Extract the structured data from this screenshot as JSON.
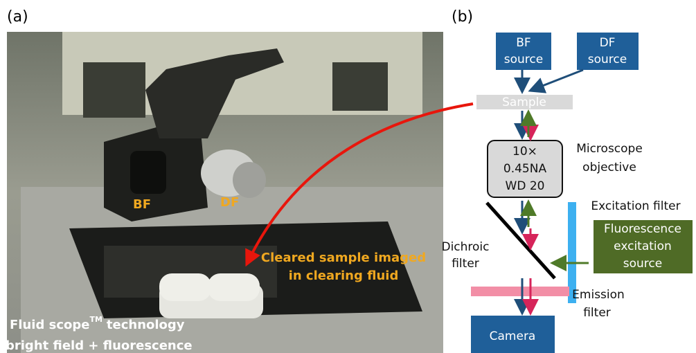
{
  "panel_a": {
    "label": "(a)",
    "photo_labels": {
      "bf": "BF",
      "df": "DF"
    },
    "annotation": [
      "Cleared sample imaged",
      "in clearing fluid"
    ],
    "caption": {
      "line1_start": "Fluid scope",
      "superscript": "TM",
      "line1_end": "technology",
      "line2": "bright field + fluorescence"
    }
  },
  "panel_b": {
    "label": "(b)",
    "bf_source": [
      "BF",
      "source"
    ],
    "df_source": [
      "DF",
      "source"
    ],
    "sample": "Sample",
    "objective": [
      "10×",
      "0.45NA",
      "WD 20"
    ],
    "objective_label": [
      "Microscope",
      "objective"
    ],
    "excitation_filter": "Excitation filter",
    "fluorescence_source": [
      "Fluorescence",
      "excitation",
      "source"
    ],
    "dichroic_filter": [
      "Dichroic",
      "filter"
    ],
    "emission_filter": [
      "Emission",
      "filter"
    ],
    "camera": "Camera"
  }
}
